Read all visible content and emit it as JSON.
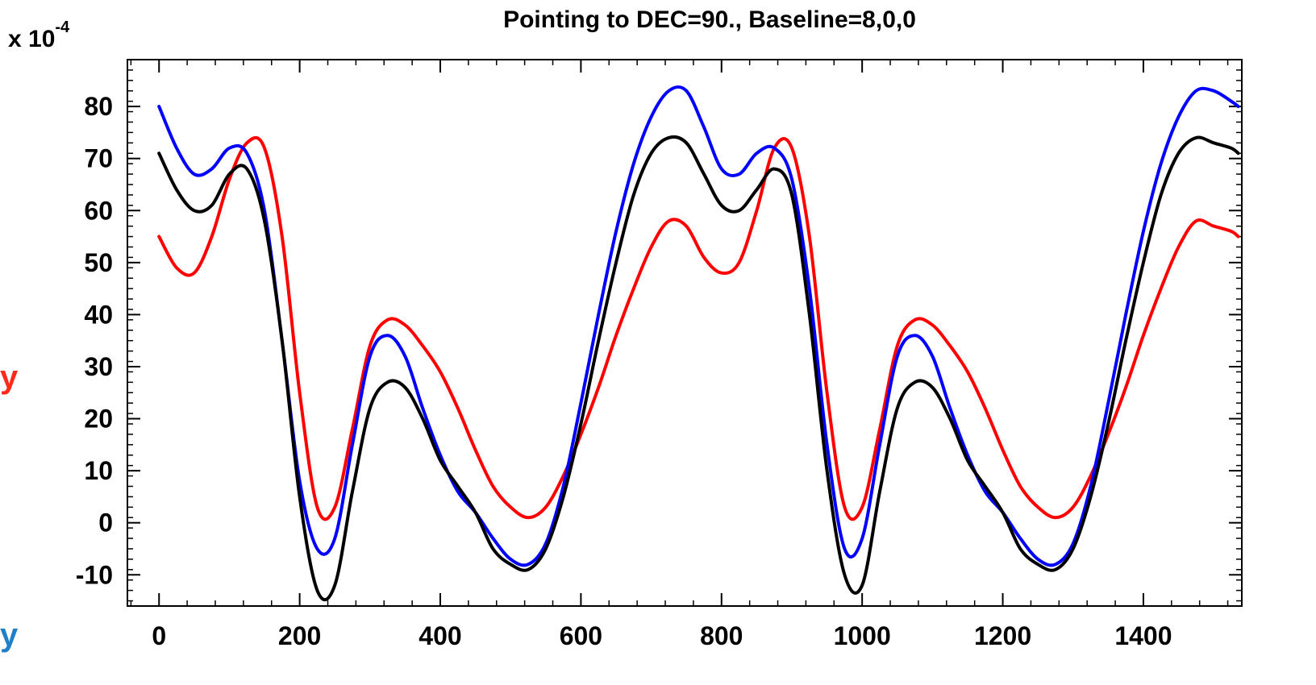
{
  "chart_data": {
    "type": "line",
    "title": "Pointing to DEC=90., Baseline=8,0,0",
    "scale_label": {
      "prefix": "x 10",
      "exponent": "-4"
    },
    "xlabel": "",
    "ylabel": "",
    "xlim": [
      -45,
      1540
    ],
    "ylim": [
      -16,
      89
    ],
    "x_ticks": [
      0,
      200,
      400,
      600,
      800,
      1000,
      1200,
      1400
    ],
    "y_ticks": [
      -10,
      0,
      10,
      20,
      30,
      40,
      50,
      60,
      70,
      80
    ],
    "grid": false,
    "x": [
      0,
      25,
      50,
      75,
      100,
      125,
      150,
      175,
      200,
      225,
      250,
      275,
      300,
      325,
      350,
      375,
      400,
      425,
      450,
      475,
      500,
      525,
      550,
      575,
      600,
      625,
      650,
      675,
      700,
      725,
      750,
      775,
      800,
      825,
      850,
      875,
      900,
      925,
      950,
      975,
      1000,
      1025,
      1050,
      1075,
      1100,
      1125,
      1150,
      1175,
      1200,
      1225,
      1250,
      1275,
      1300,
      1325,
      1350,
      1375,
      1400,
      1425,
      1450,
      1475,
      1500,
      1525,
      1535
    ],
    "series": [
      {
        "color": "#ff0000",
        "values": [
          55,
          49,
          48,
          55,
          66,
          73,
          72,
          55,
          25,
          3,
          3,
          18,
          34,
          39,
          38,
          34,
          29,
          22,
          14,
          7,
          3,
          1,
          3,
          9,
          17,
          26,
          36,
          45,
          53,
          58,
          57,
          51,
          48,
          50,
          60,
          72,
          72,
          55,
          25,
          3,
          3,
          18,
          34,
          39,
          38,
          34,
          29,
          22,
          14,
          7,
          3,
          1,
          3,
          9,
          17,
          26,
          36,
          45,
          53,
          58,
          57,
          56,
          55
        ]
      },
      {
        "color": "#0000ff",
        "values": [
          80,
          72,
          67,
          68,
          72,
          71,
          60,
          35,
          8,
          -5,
          -3,
          15,
          32,
          36,
          32,
          22,
          13,
          6,
          2,
          -3,
          -7,
          -8,
          -4,
          7,
          23,
          40,
          56,
          69,
          78,
          83,
          83,
          76,
          68,
          67,
          71,
          72,
          66,
          45,
          15,
          -5,
          -3,
          15,
          32,
          36,
          32,
          22,
          13,
          6,
          2,
          -3,
          -7,
          -8,
          -4,
          7,
          23,
          40,
          56,
          69,
          78,
          83,
          83,
          81,
          80
        ]
      },
      {
        "color": "#000000",
        "values": [
          71,
          64,
          60,
          61,
          67,
          68,
          58,
          35,
          5,
          -13,
          -12,
          6,
          22,
          27,
          26,
          20,
          12,
          7,
          2,
          -5,
          -8,
          -9,
          -5,
          5,
          19,
          35,
          50,
          63,
          71,
          74,
          73,
          67,
          61,
          60,
          64,
          68,
          63,
          40,
          10,
          -10,
          -12,
          6,
          22,
          27,
          26,
          20,
          12,
          7,
          2,
          -5,
          -8,
          -9,
          -5,
          5,
          19,
          35,
          50,
          63,
          71,
          74,
          73,
          72,
          71
        ]
      }
    ],
    "margin_labels": [
      {
        "text": "y",
        "color": "#ff2a1a"
      },
      {
        "text": "y",
        "color": "#1f7fc8"
      }
    ]
  }
}
